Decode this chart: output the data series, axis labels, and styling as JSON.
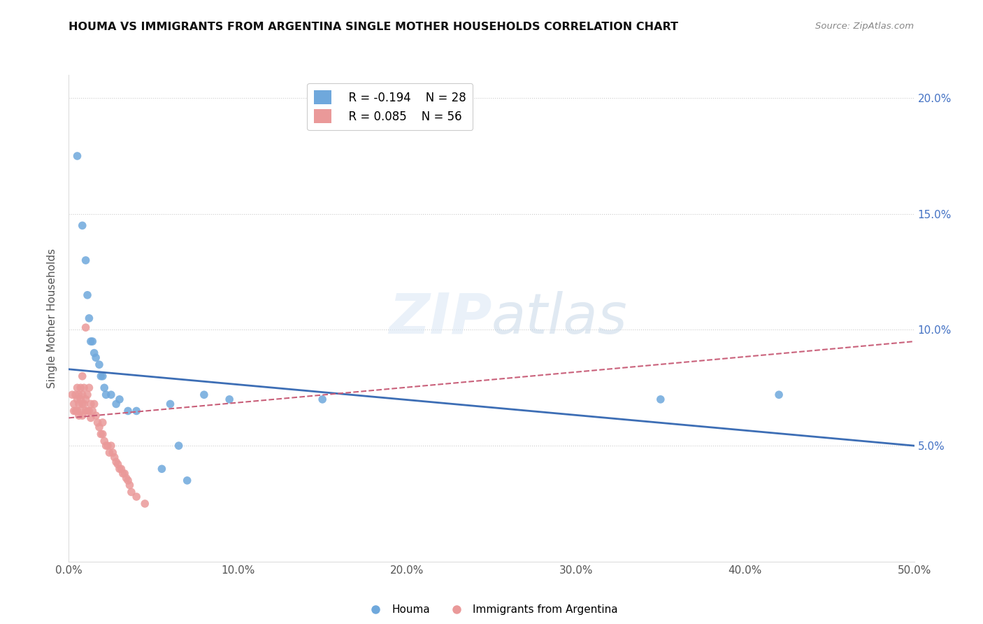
{
  "title": "HOUMA VS IMMIGRANTS FROM ARGENTINA SINGLE MOTHER HOUSEHOLDS CORRELATION CHART",
  "source": "Source: ZipAtlas.com",
  "ylabel": "Single Mother Households",
  "xlim": [
    0.0,
    0.5
  ],
  "ylim": [
    0.0,
    0.21
  ],
  "xticks": [
    0.0,
    0.1,
    0.2,
    0.3,
    0.4,
    0.5
  ],
  "yticks": [
    0.05,
    0.1,
    0.15,
    0.2
  ],
  "xticklabels": [
    "0.0%",
    "10.0%",
    "20.0%",
    "30.0%",
    "40.0%",
    "50.0%"
  ],
  "yticklabels_right": [
    "5.0%",
    "10.0%",
    "15.0%",
    "20.0%"
  ],
  "legend_r1": "R = -0.194",
  "legend_n1": "N = 28",
  "legend_r2": "R = 0.085",
  "legend_n2": "N = 56",
  "color_houma": "#6fa8dc",
  "color_argentina": "#ea9999",
  "color_houma_line": "#3d6eb5",
  "color_argentina_line": "#c9607a",
  "houma_line_x": [
    0.0,
    0.5
  ],
  "houma_line_y": [
    0.083,
    0.05
  ],
  "argentina_line_x": [
    0.0,
    0.5
  ],
  "argentina_line_y": [
    0.062,
    0.095
  ],
  "houma_x": [
    0.005,
    0.008,
    0.01,
    0.011,
    0.012,
    0.013,
    0.014,
    0.015,
    0.016,
    0.018,
    0.019,
    0.02,
    0.021,
    0.022,
    0.025,
    0.028,
    0.03,
    0.035,
    0.04,
    0.055,
    0.06,
    0.065,
    0.07,
    0.08,
    0.095,
    0.15,
    0.35,
    0.42
  ],
  "houma_y": [
    0.175,
    0.145,
    0.13,
    0.115,
    0.105,
    0.095,
    0.095,
    0.09,
    0.088,
    0.085,
    0.08,
    0.08,
    0.075,
    0.072,
    0.072,
    0.068,
    0.07,
    0.065,
    0.065,
    0.04,
    0.068,
    0.05,
    0.035,
    0.072,
    0.07,
    0.07,
    0.07,
    0.072
  ],
  "argentina_x": [
    0.002,
    0.003,
    0.003,
    0.004,
    0.004,
    0.005,
    0.005,
    0.005,
    0.006,
    0.006,
    0.006,
    0.007,
    0.007,
    0.007,
    0.008,
    0.008,
    0.008,
    0.008,
    0.009,
    0.009,
    0.01,
    0.01,
    0.01,
    0.011,
    0.011,
    0.012,
    0.012,
    0.013,
    0.013,
    0.014,
    0.015,
    0.016,
    0.017,
    0.018,
    0.019,
    0.02,
    0.02,
    0.021,
    0.022,
    0.023,
    0.024,
    0.025,
    0.026,
    0.027,
    0.028,
    0.029,
    0.03,
    0.031,
    0.032,
    0.033,
    0.034,
    0.035,
    0.036,
    0.037,
    0.04,
    0.045
  ],
  "argentina_y": [
    0.072,
    0.068,
    0.065,
    0.072,
    0.065,
    0.075,
    0.07,
    0.065,
    0.072,
    0.068,
    0.063,
    0.075,
    0.07,
    0.065,
    0.08,
    0.072,
    0.068,
    0.063,
    0.075,
    0.068,
    0.101,
    0.07,
    0.065,
    0.072,
    0.065,
    0.075,
    0.065,
    0.068,
    0.062,
    0.065,
    0.068,
    0.063,
    0.06,
    0.058,
    0.055,
    0.06,
    0.055,
    0.052,
    0.05,
    0.05,
    0.047,
    0.05,
    0.047,
    0.045,
    0.043,
    0.042,
    0.04,
    0.04,
    0.038,
    0.038,
    0.036,
    0.035,
    0.033,
    0.03,
    0.028,
    0.025
  ]
}
